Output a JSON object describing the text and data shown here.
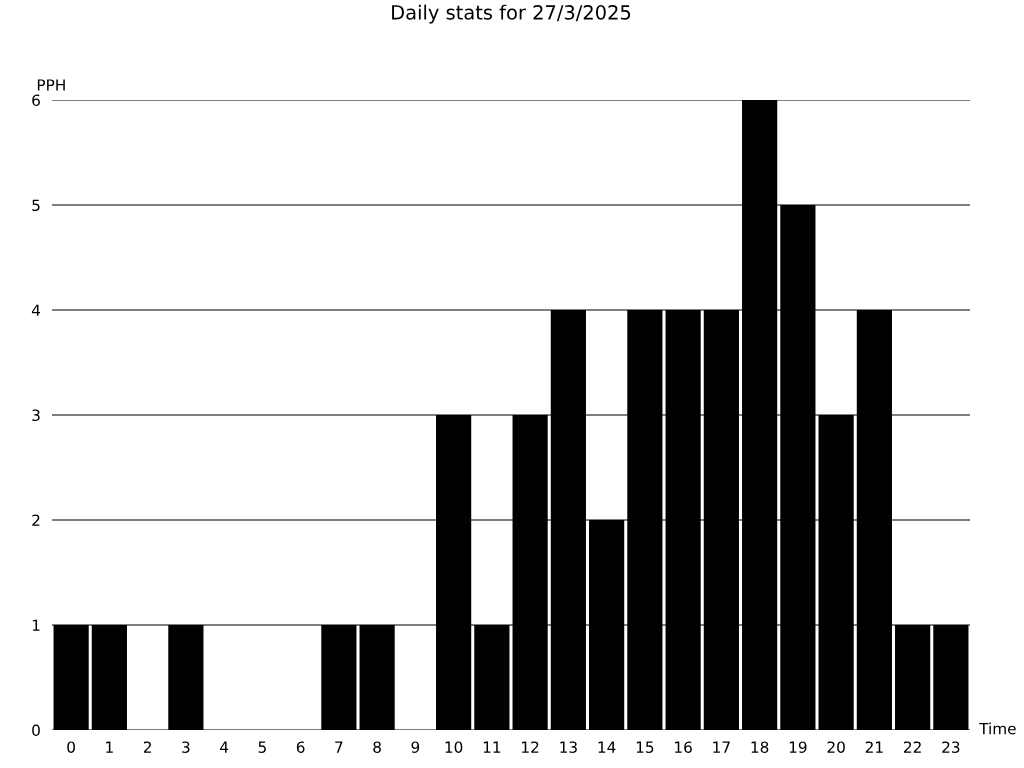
{
  "chart_data": {
    "type": "bar",
    "title": "Daily stats for 27/3/2025",
    "xlabel": "Time",
    "ylabel": "PPH",
    "categories": [
      "0",
      "1",
      "2",
      "3",
      "4",
      "5",
      "6",
      "7",
      "8",
      "9",
      "10",
      "11",
      "12",
      "13",
      "14",
      "15",
      "16",
      "17",
      "18",
      "19",
      "20",
      "21",
      "22",
      "23"
    ],
    "values": [
      1,
      1,
      0,
      1,
      0,
      0,
      0,
      1,
      1,
      0,
      3,
      1,
      3,
      4,
      2,
      4,
      4,
      4,
      6,
      5,
      3,
      4,
      1,
      1
    ],
    "color": "#000000",
    "ylim": [
      0,
      6
    ],
    "yticks": [
      0,
      1,
      2,
      3,
      4,
      5,
      6
    ],
    "grid": "y",
    "legend": false
  }
}
